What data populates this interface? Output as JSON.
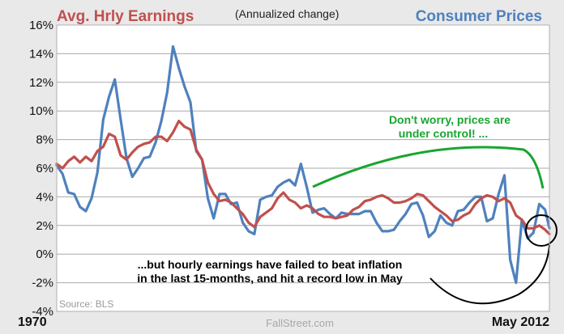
{
  "chart_data": {
    "type": "line",
    "title_left": "Avg. Hrly Earnings",
    "subtitle": "(Annualized change)",
    "title_right": "Consumer Prices",
    "ylim": [
      -4,
      16
    ],
    "yticks": [
      16,
      14,
      12,
      10,
      8,
      6,
      4,
      2,
      0,
      -2,
      -4
    ],
    "ytick_labels": [
      "16%",
      "14%",
      "12%",
      "10%",
      "8%",
      "6%",
      "4%",
      "2%",
      "0%",
      "-2%",
      "-4%"
    ],
    "xlim": [
      1970.0,
      2012.37
    ],
    "x_start_label": "1970",
    "x_end_label": "May 2012",
    "grid": true,
    "series": [
      {
        "name": "Avg. Hrly Earnings",
        "color": "#c0504d",
        "points": [
          [
            1970.0,
            6.3
          ],
          [
            1970.5,
            6.0
          ],
          [
            1971.0,
            6.5
          ],
          [
            1971.5,
            6.8
          ],
          [
            1972.0,
            6.4
          ],
          [
            1972.5,
            6.8
          ],
          [
            1973.0,
            6.5
          ],
          [
            1973.5,
            7.2
          ],
          [
            1974.0,
            7.5
          ],
          [
            1974.5,
            8.4
          ],
          [
            1975.0,
            8.2
          ],
          [
            1975.5,
            6.9
          ],
          [
            1976.0,
            6.6
          ],
          [
            1976.5,
            7.1
          ],
          [
            1977.0,
            7.5
          ],
          [
            1977.5,
            7.7
          ],
          [
            1978.0,
            7.8
          ],
          [
            1978.5,
            8.2
          ],
          [
            1979.0,
            8.2
          ],
          [
            1979.5,
            7.9
          ],
          [
            1980.0,
            8.5
          ],
          [
            1980.5,
            9.3
          ],
          [
            1981.0,
            8.9
          ],
          [
            1981.5,
            8.7
          ],
          [
            1982.0,
            7.3
          ],
          [
            1982.5,
            6.6
          ],
          [
            1983.0,
            5.0
          ],
          [
            1983.5,
            4.2
          ],
          [
            1984.0,
            3.7
          ],
          [
            1984.5,
            3.8
          ],
          [
            1985.0,
            3.6
          ],
          [
            1985.5,
            3.2
          ],
          [
            1986.0,
            2.8
          ],
          [
            1986.5,
            2.2
          ],
          [
            1987.0,
            1.9
          ],
          [
            1987.5,
            2.6
          ],
          [
            1988.0,
            2.9
          ],
          [
            1988.5,
            3.2
          ],
          [
            1989.0,
            3.9
          ],
          [
            1989.5,
            4.3
          ],
          [
            1990.0,
            3.8
          ],
          [
            1990.5,
            3.6
          ],
          [
            1991.0,
            3.2
          ],
          [
            1991.5,
            3.4
          ],
          [
            1992.0,
            3.2
          ],
          [
            1992.5,
            2.8
          ],
          [
            1993.0,
            2.6
          ],
          [
            1993.5,
            2.6
          ],
          [
            1994.0,
            2.5
          ],
          [
            1994.5,
            2.6
          ],
          [
            1995.0,
            2.7
          ],
          [
            1995.5,
            3.1
          ],
          [
            1996.0,
            3.3
          ],
          [
            1996.5,
            3.7
          ],
          [
            1997.0,
            3.8
          ],
          [
            1997.5,
            4.0
          ],
          [
            1998.0,
            4.1
          ],
          [
            1998.5,
            3.9
          ],
          [
            1999.0,
            3.6
          ],
          [
            1999.5,
            3.6
          ],
          [
            2000.0,
            3.7
          ],
          [
            2000.5,
            3.9
          ],
          [
            2001.0,
            4.2
          ],
          [
            2001.5,
            4.1
          ],
          [
            2002.0,
            3.7
          ],
          [
            2002.5,
            3.3
          ],
          [
            2003.0,
            3.0
          ],
          [
            2003.5,
            2.7
          ],
          [
            2004.0,
            2.3
          ],
          [
            2004.5,
            2.4
          ],
          [
            2005.0,
            2.7
          ],
          [
            2005.5,
            2.9
          ],
          [
            2006.0,
            3.5
          ],
          [
            2006.5,
            3.9
          ],
          [
            2007.0,
            4.1
          ],
          [
            2007.5,
            4.0
          ],
          [
            2008.0,
            3.7
          ],
          [
            2008.5,
            3.9
          ],
          [
            2009.0,
            3.6
          ],
          [
            2009.5,
            2.7
          ],
          [
            2010.0,
            2.4
          ],
          [
            2010.5,
            1.8
          ],
          [
            2011.0,
            1.8
          ],
          [
            2011.5,
            2.0
          ],
          [
            2012.0,
            1.7
          ],
          [
            2012.37,
            1.4
          ]
        ]
      },
      {
        "name": "Consumer Prices",
        "color": "#4f81bd",
        "points": [
          [
            1970.0,
            6.2
          ],
          [
            1970.5,
            5.6
          ],
          [
            1971.0,
            4.3
          ],
          [
            1971.5,
            4.2
          ],
          [
            1972.0,
            3.3
          ],
          [
            1972.5,
            3.0
          ],
          [
            1973.0,
            3.9
          ],
          [
            1973.5,
            5.7
          ],
          [
            1974.0,
            9.4
          ],
          [
            1974.5,
            11.0
          ],
          [
            1975.0,
            12.2
          ],
          [
            1975.5,
            9.4
          ],
          [
            1976.0,
            6.7
          ],
          [
            1976.5,
            5.4
          ],
          [
            1977.0,
            6.0
          ],
          [
            1977.5,
            6.7
          ],
          [
            1978.0,
            6.8
          ],
          [
            1978.5,
            7.8
          ],
          [
            1979.0,
            9.3
          ],
          [
            1979.5,
            11.3
          ],
          [
            1980.0,
            14.5
          ],
          [
            1980.5,
            13.0
          ],
          [
            1981.0,
            11.7
          ],
          [
            1981.5,
            10.6
          ],
          [
            1982.0,
            7.2
          ],
          [
            1982.5,
            6.6
          ],
          [
            1983.0,
            3.9
          ],
          [
            1983.5,
            2.5
          ],
          [
            1984.0,
            4.2
          ],
          [
            1984.5,
            4.2
          ],
          [
            1985.0,
            3.5
          ],
          [
            1985.5,
            3.6
          ],
          [
            1986.0,
            2.2
          ],
          [
            1986.5,
            1.6
          ],
          [
            1987.0,
            1.4
          ],
          [
            1987.5,
            3.8
          ],
          [
            1988.0,
            4.0
          ],
          [
            1988.5,
            4.1
          ],
          [
            1989.0,
            4.7
          ],
          [
            1989.5,
            5.0
          ],
          [
            1990.0,
            5.2
          ],
          [
            1990.5,
            4.8
          ],
          [
            1991.0,
            6.3
          ],
          [
            1991.5,
            4.7
          ],
          [
            1992.0,
            2.9
          ],
          [
            1992.5,
            3.1
          ],
          [
            1993.0,
            3.2
          ],
          [
            1993.5,
            2.8
          ],
          [
            1994.0,
            2.5
          ],
          [
            1994.5,
            2.9
          ],
          [
            1995.0,
            2.8
          ],
          [
            1995.5,
            2.8
          ],
          [
            1996.0,
            2.8
          ],
          [
            1996.5,
            3.0
          ],
          [
            1997.0,
            3.0
          ],
          [
            1997.5,
            2.2
          ],
          [
            1998.0,
            1.6
          ],
          [
            1998.5,
            1.6
          ],
          [
            1999.0,
            1.7
          ],
          [
            1999.5,
            2.3
          ],
          [
            2000.0,
            2.8
          ],
          [
            2000.5,
            3.5
          ],
          [
            2001.0,
            3.6
          ],
          [
            2001.5,
            2.7
          ],
          [
            2002.0,
            1.2
          ],
          [
            2002.5,
            1.6
          ],
          [
            2003.0,
            2.7
          ],
          [
            2003.5,
            2.2
          ],
          [
            2004.0,
            2.0
          ],
          [
            2004.5,
            3.0
          ],
          [
            2005.0,
            3.1
          ],
          [
            2005.5,
            3.6
          ],
          [
            2006.0,
            4.0
          ],
          [
            2006.5,
            4.0
          ],
          [
            2007.0,
            2.3
          ],
          [
            2007.5,
            2.5
          ],
          [
            2008.0,
            4.2
          ],
          [
            2008.5,
            5.5
          ],
          [
            2009.0,
            -0.4
          ],
          [
            2009.5,
            -2.0
          ],
          [
            2010.0,
            2.4
          ],
          [
            2010.5,
            1.1
          ],
          [
            2011.0,
            1.5
          ],
          [
            2011.5,
            3.5
          ],
          [
            2012.0,
            3.1
          ],
          [
            2012.37,
            1.8
          ]
        ]
      }
    ],
    "annotations": {
      "green_line1": "Don't worry, prices are",
      "green_line2": "under control! ...",
      "black_line1": "...but hourly earnings have failed to beat inflation",
      "black_line2": "in the last 15-months, and hit a record low in May"
    },
    "source": "Source: BLS",
    "watermark": "FallStreet.com",
    "colors": {
      "green_arc": "#19a531",
      "plot_bg": "#ffffff",
      "frame_bg": "#e9e9e9"
    }
  }
}
